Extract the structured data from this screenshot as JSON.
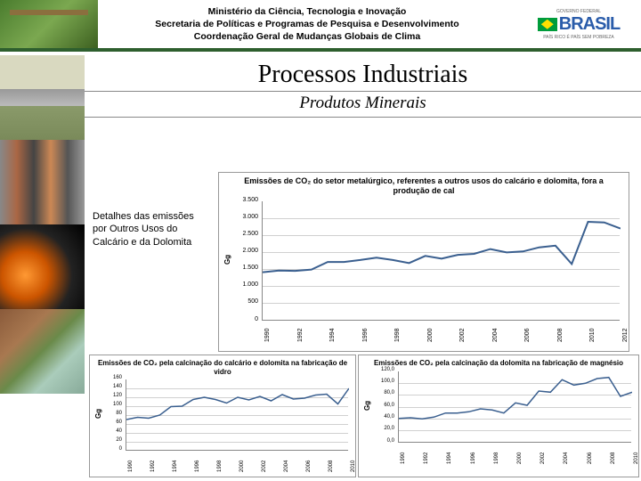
{
  "header": {
    "line1": "Ministério da Ciência, Tecnologia e Inovação",
    "line2": "Secretaria de Políticas e Programas de Pesquisa e Desenvolvimento",
    "line3": "Coordenação Geral de Mudanças Globais de Clima",
    "logo_main": "BRASIL",
    "logo_top": "GOVERNO FEDERAL",
    "logo_sub": "PAÍS RICO É PAÍS SEM POBREZA"
  },
  "title": "Processos Industriais",
  "subtitle": "Produtos Minerais",
  "detail": "Detalhes das emissões por Outros Usos do Calcário e da Dolomita",
  "chart1": {
    "title_html": "Emissões de CO₂ do setor metalúrgico, referentes a outros usos do calcário e dolomita, fora a produção de cal",
    "type": "line",
    "ylabel": "Gg",
    "ylim": [
      0,
      3500
    ],
    "ytick_step": 500,
    "xticks": [
      1990,
      1992,
      1994,
      1996,
      1998,
      2000,
      2002,
      2004,
      2006,
      2008,
      2010,
      2012
    ],
    "years": [
      1990,
      1991,
      1992,
      1993,
      1994,
      1995,
      1996,
      1997,
      1998,
      1999,
      2000,
      2001,
      2002,
      2003,
      2004,
      2005,
      2006,
      2007,
      2008,
      2009,
      2010,
      2011,
      2012
    ],
    "values": [
      1420,
      1470,
      1460,
      1500,
      1720,
      1720,
      1780,
      1850,
      1780,
      1690,
      1900,
      1820,
      1930,
      1960,
      2100,
      2000,
      2030,
      2150,
      2200,
      1660,
      2900,
      2880,
      2700
    ],
    "line_color": "#3a5f8f",
    "line_width": 2,
    "background_color": "#ffffff",
    "grid_color": "#d0d0d0",
    "title_fontsize": 9,
    "label_fontsize": 7
  },
  "chart2": {
    "title_html": "Emissões de CO₂ pela calcinação do calcário e dolomita na fabricação de vidro",
    "type": "line",
    "ylabel": "Gg",
    "ylim": [
      0,
      160
    ],
    "ytick_step": 20,
    "xticks": [
      1990,
      1992,
      1994,
      1996,
      1998,
      2000,
      2002,
      2004,
      2006,
      2008,
      2010
    ],
    "years": [
      1990,
      1991,
      1992,
      1993,
      1994,
      1995,
      1996,
      1997,
      1998,
      1999,
      2000,
      2001,
      2002,
      2003,
      2004,
      2005,
      2006,
      2007,
      2008,
      2009,
      2010
    ],
    "values": [
      70,
      75,
      73,
      80,
      99,
      100,
      115,
      120,
      115,
      107,
      120,
      114,
      122,
      112,
      126,
      116,
      118,
      125,
      127,
      105,
      140
    ],
    "line_color": "#3a5f8f",
    "line_width": 1.5,
    "background_color": "#ffffff",
    "grid_color": "#d0d0d0",
    "title_fontsize": 8,
    "label_fontsize": 6
  },
  "chart3": {
    "title_html": "Emissões de CO₂ pela calcinação da dolomita na fabricação de magnésio",
    "type": "line",
    "ylabel": "Gg",
    "ylim": [
      0,
      120
    ],
    "ytick_step": 20,
    "yticks_decimal": true,
    "xticks": [
      1990,
      1992,
      1994,
      1996,
      1998,
      2000,
      2002,
      2004,
      2006,
      2008,
      2010
    ],
    "years": [
      1990,
      1991,
      1992,
      1993,
      1994,
      1995,
      1996,
      1997,
      1998,
      1999,
      2000,
      2001,
      2002,
      2003,
      2004,
      2005,
      2006,
      2007,
      2008,
      2009,
      2010
    ],
    "values": [
      41,
      42,
      40,
      43,
      50,
      50,
      52,
      57,
      55,
      50,
      67,
      63,
      87,
      85,
      106,
      97,
      100,
      108,
      110,
      78,
      85
    ],
    "line_color": "#3a5f8f",
    "line_width": 1.5,
    "background_color": "#ffffff",
    "grid_color": "#d0d0d0",
    "title_fontsize": 8,
    "label_fontsize": 6
  }
}
